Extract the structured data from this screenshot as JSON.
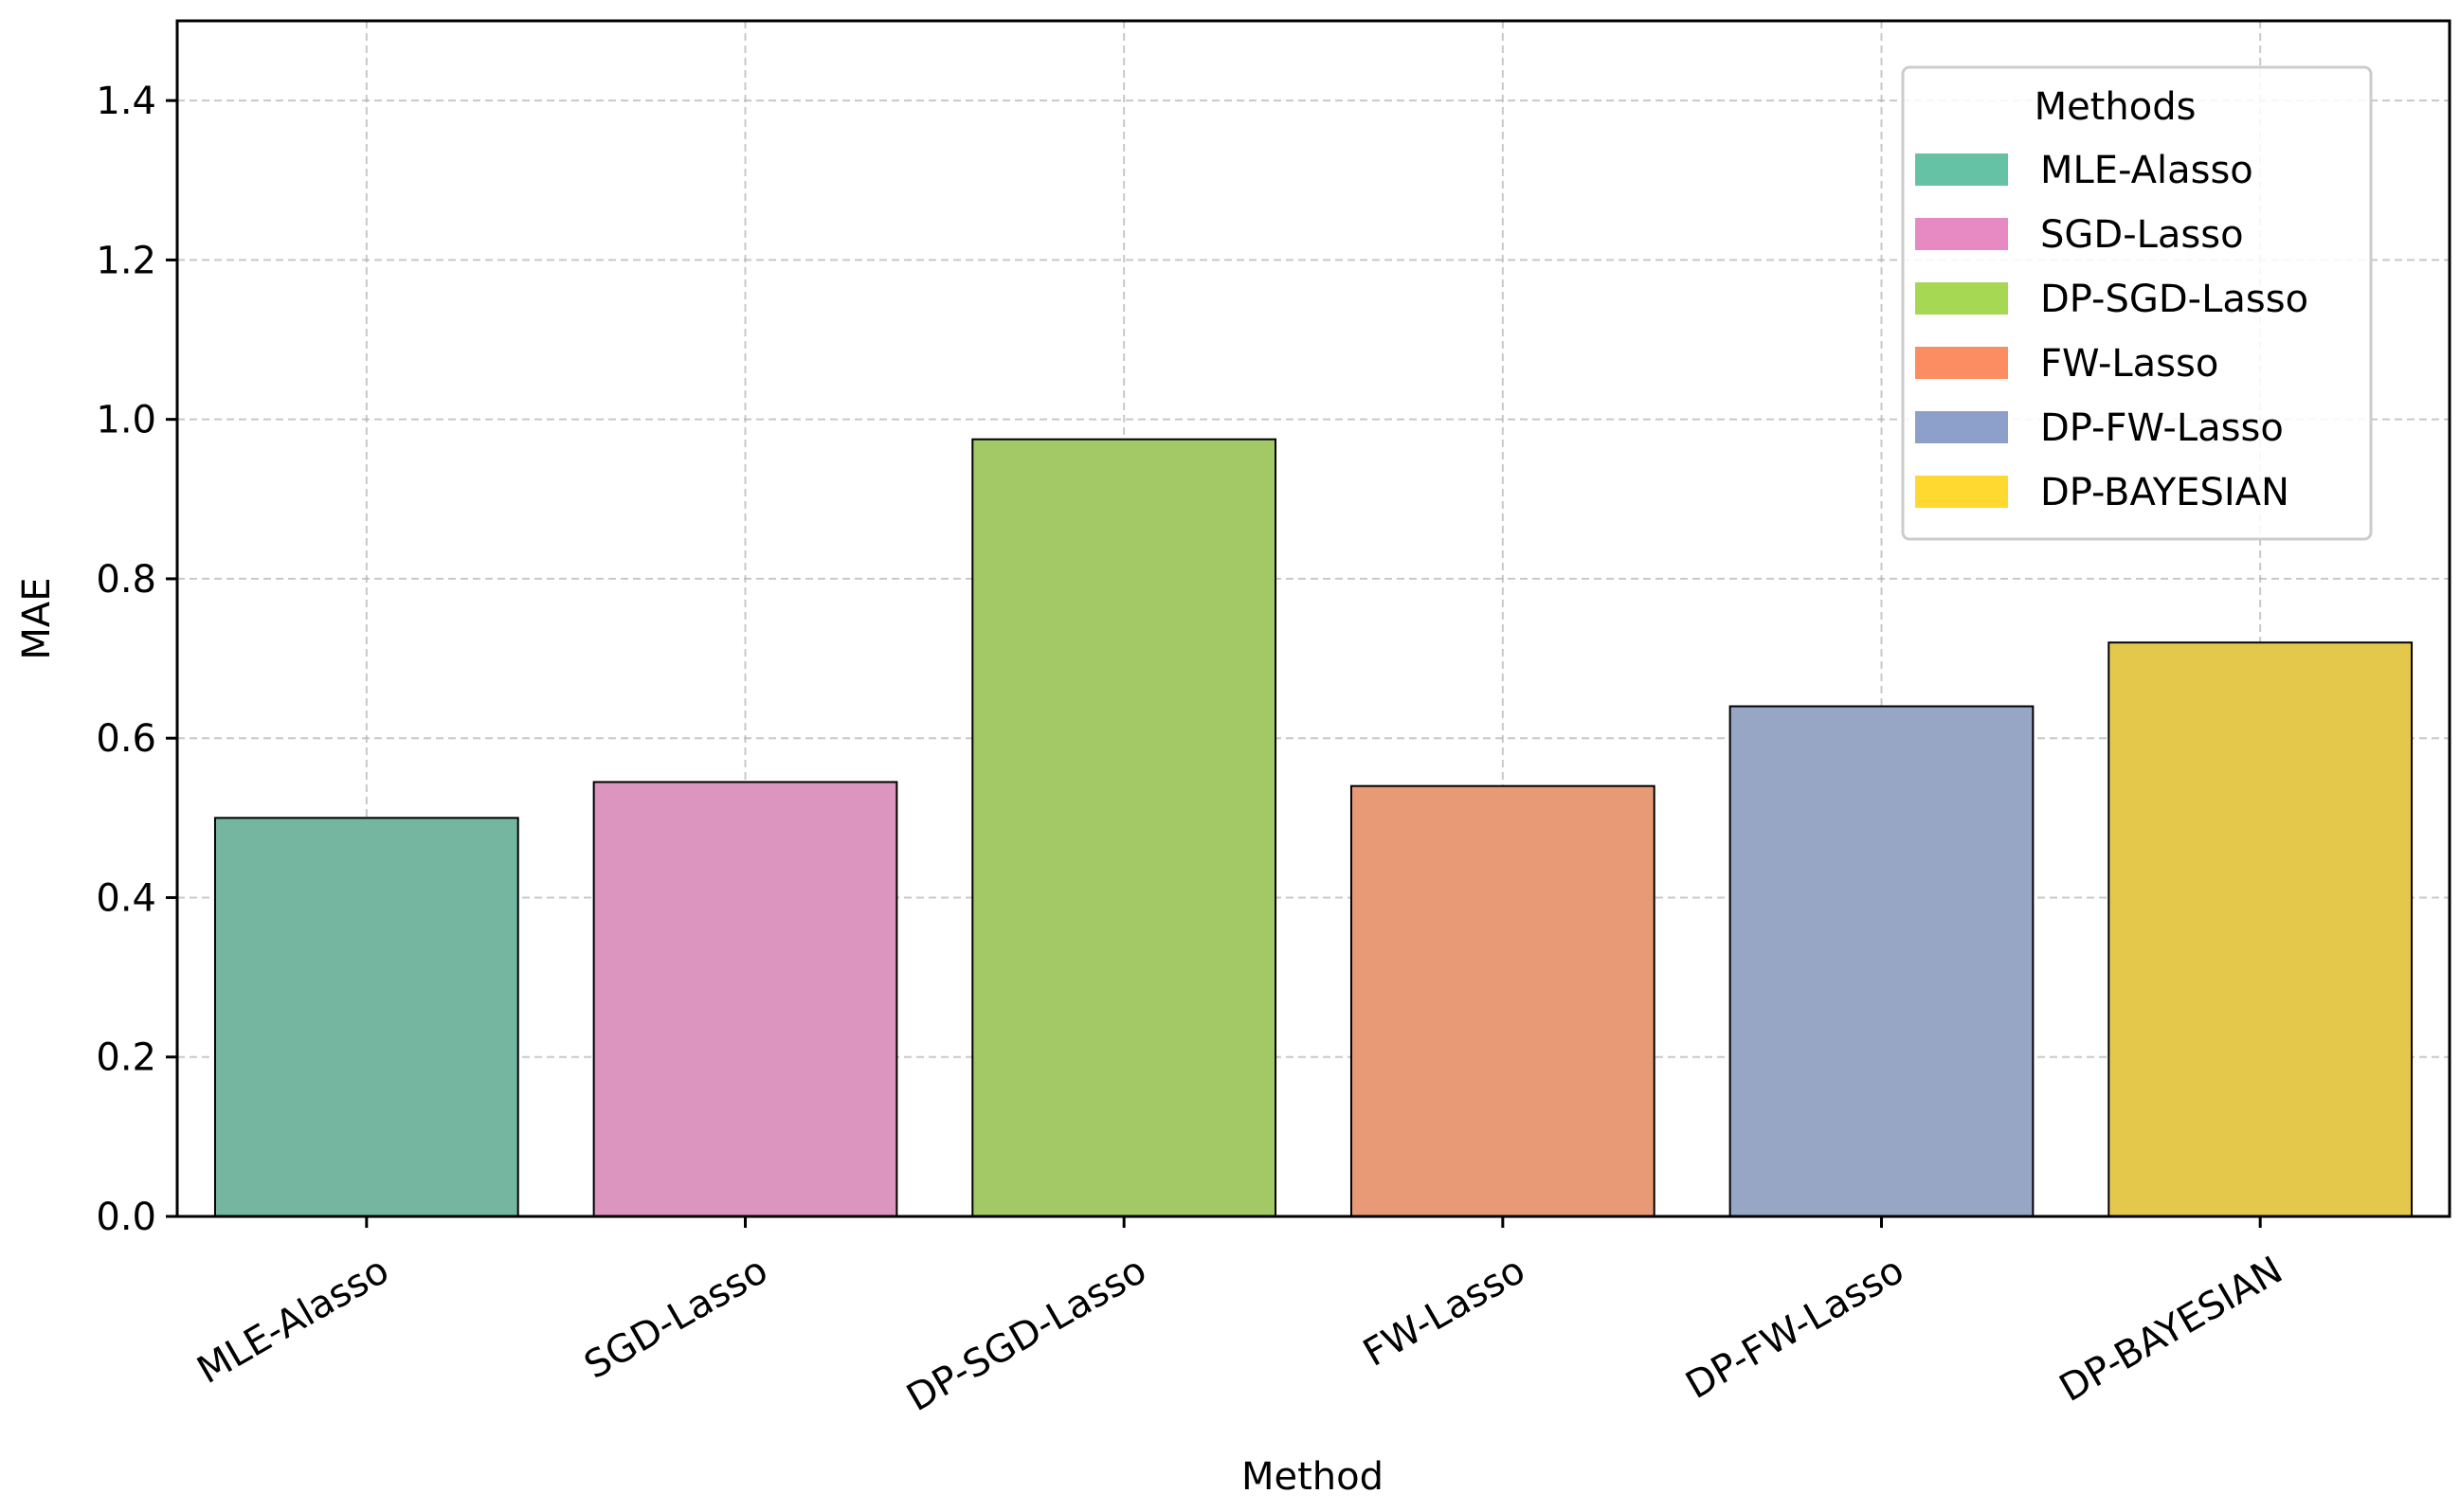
{
  "chart_data": {
    "type": "bar",
    "title": "",
    "xlabel": "Method",
    "ylabel": "MAE",
    "ylim": [
      0,
      1.5
    ],
    "yticks": [
      0.0,
      0.2,
      0.4,
      0.6,
      0.8,
      1.0,
      1.2,
      1.4
    ],
    "ytick_labels": [
      "0.0",
      "0.2",
      "0.4",
      "0.6",
      "0.8",
      "1.0",
      "1.2",
      "1.4"
    ],
    "grid": true,
    "categories": [
      "MLE-Alasso",
      "SGD-Lasso",
      "DP-SGD-Lasso",
      "FW-Lasso",
      "DP-FW-Lasso",
      "DP-BAYESIAN"
    ],
    "values": [
      0.5,
      0.545,
      0.975,
      0.54,
      0.64,
      0.72
    ],
    "bar_colors": [
      "#74b69f",
      "#db95bf",
      "#a3c966",
      "#e89a77",
      "#96a6c4",
      "#e4c84b"
    ],
    "legend": {
      "title": "Methods",
      "placement": "top-right",
      "entries": [
        "MLE-Alasso",
        "SGD-Lasso",
        "DP-SGD-Lasso",
        "FW-Lasso",
        "DP-FW-Lasso",
        "DP-BAYESIAN"
      ],
      "colors": [
        "#66c2a5",
        "#e78ac3",
        "#a6d854",
        "#fc8d62",
        "#8da0cb",
        "#ffd92f"
      ]
    }
  }
}
